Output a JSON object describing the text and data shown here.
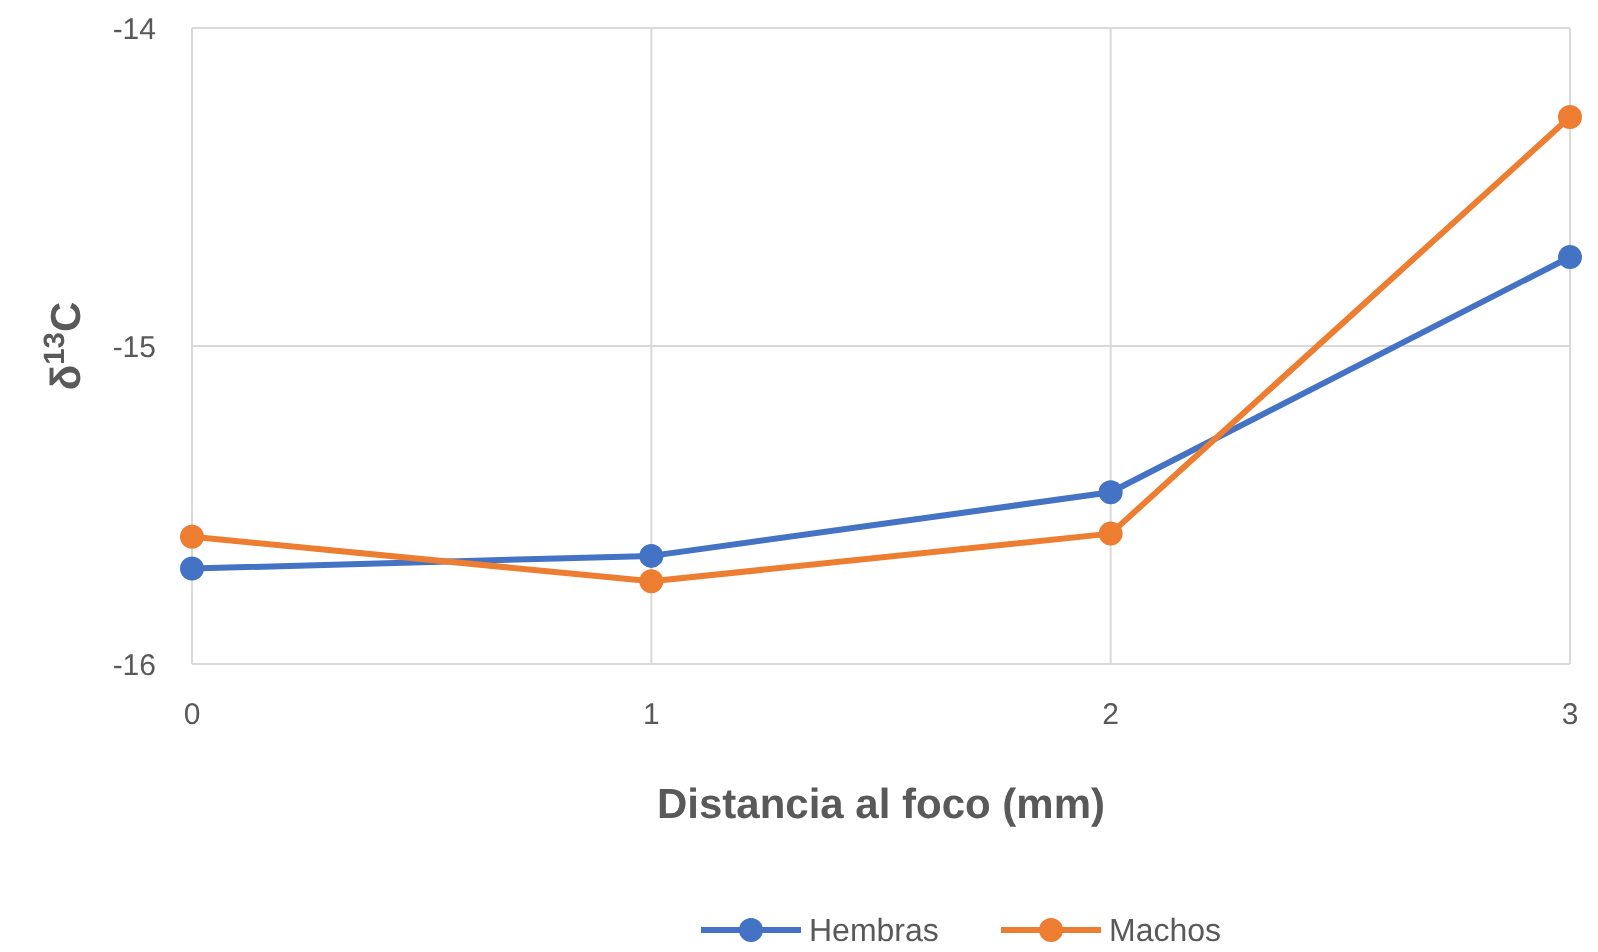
{
  "chart_data": {
    "type": "line",
    "xlabel": "Distancia al foco (mm)",
    "ylabel": "δ$^{13}$C",
    "x": [
      0,
      1,
      2,
      3
    ],
    "series": [
      {
        "name": "Hembras",
        "color": "#4472c4",
        "values": [
          -15.7,
          -15.66,
          -15.46,
          -14.72
        ]
      },
      {
        "name": "Machos",
        "color": "#ed7d31",
        "values": [
          -15.6,
          -15.74,
          -15.59,
          -14.28
        ]
      }
    ],
    "xlim": [
      0,
      3
    ],
    "xticks": [
      0,
      1,
      2,
      3
    ],
    "ylim": [
      -16,
      -14
    ],
    "yticks": [
      -16,
      -15,
      -14
    ],
    "grid": true,
    "legend": "bottom",
    "marker": "circle",
    "line_style": "solid"
  }
}
